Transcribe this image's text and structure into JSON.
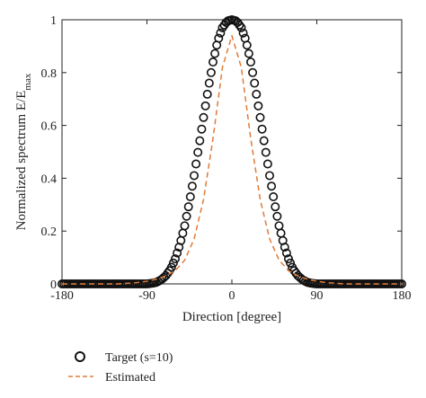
{
  "chart_data": {
    "type": "line",
    "title": "",
    "xlabel": "Direction [degree]",
    "ylabel_main": "Normalized spectrum E/E",
    "ylabel_sub": "max",
    "xlim": [
      -180,
      180
    ],
    "ylim": [
      0,
      1
    ],
    "xticks": [
      -180,
      -90,
      0,
      90,
      180
    ],
    "xtick_labels": [
      "-180",
      "-90",
      "0",
      "90",
      "180"
    ],
    "yticks": [
      0,
      0.2,
      0.4,
      0.6,
      0.8,
      1
    ],
    "ytick_labels": [
      "0",
      "0.2",
      "0.4",
      "0.6",
      "0.8",
      "1"
    ],
    "grid": false,
    "legend_position": "bottom-left, below plot",
    "series": [
      {
        "name": "Target (s=10)",
        "style": "markers",
        "marker": "circle-open",
        "color": "#111111",
        "x": [
          -180,
          -170,
          -160,
          -150,
          -140,
          -130,
          -120,
          -110,
          -100,
          -90,
          -85,
          -80,
          -75,
          -70,
          -65,
          -60,
          -55,
          -50,
          -45,
          -40,
          -35,
          -30,
          -25,
          -20,
          -15,
          -10,
          -5,
          0,
          5,
          10,
          15,
          20,
          25,
          30,
          35,
          40,
          45,
          50,
          55,
          60,
          65,
          70,
          75,
          80,
          85,
          90,
          100,
          110,
          120,
          130,
          140,
          150,
          160,
          170,
          180
        ],
        "y": [
          0,
          0,
          0,
          0,
          0,
          0,
          0,
          0,
          0,
          0,
          0.002,
          0.006,
          0.015,
          0.031,
          0.055,
          0.095,
          0.15,
          0.22,
          0.31,
          0.41,
          0.52,
          0.63,
          0.74,
          0.84,
          0.92,
          0.97,
          0.995,
          1,
          0.995,
          0.97,
          0.92,
          0.84,
          0.74,
          0.63,
          0.52,
          0.41,
          0.31,
          0.22,
          0.15,
          0.095,
          0.055,
          0.031,
          0.015,
          0.006,
          0.002,
          0,
          0,
          0,
          0,
          0,
          0,
          0,
          0,
          0,
          0
        ]
      },
      {
        "name": "Estimated",
        "style": "dashed",
        "color": "#e07b39",
        "x": [
          -180,
          -120,
          -100,
          -90,
          -80,
          -70,
          -60,
          -50,
          -40,
          -30,
          -20,
          -10,
          0,
          10,
          20,
          30,
          40,
          50,
          60,
          70,
          80,
          90,
          100,
          120,
          180
        ],
        "y": [
          0,
          0,
          0.005,
          0.01,
          0.018,
          0.03,
          0.05,
          0.09,
          0.17,
          0.32,
          0.55,
          0.82,
          0.94,
          0.82,
          0.55,
          0.32,
          0.17,
          0.09,
          0.05,
          0.03,
          0.018,
          0.01,
          0.005,
          0,
          0
        ]
      }
    ]
  }
}
